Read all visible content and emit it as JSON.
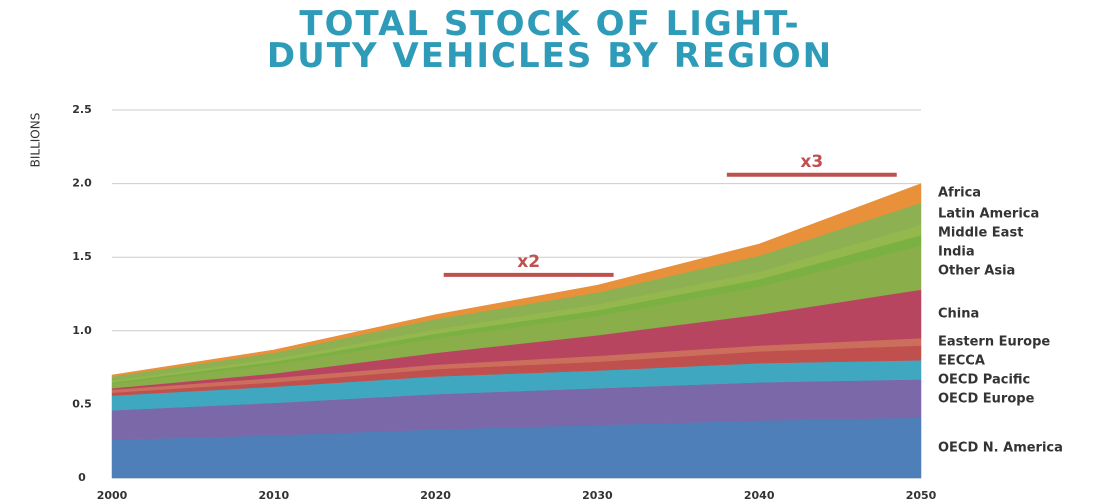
{
  "chart_data": {
    "type": "stacked_area",
    "title": "TOTAL STOCK OF LIGHT-DUTY VEHICLES BY REGION",
    "y_label": "BILLIONS",
    "x": [
      2000,
      2010,
      2020,
      2030,
      2040,
      2050
    ],
    "xlim": [
      2000,
      2050
    ],
    "xticks": [
      2000,
      2010,
      2020,
      2030,
      2040,
      2050
    ],
    "ylim": [
      0,
      2.5
    ],
    "yticks": [
      0,
      0.5,
      {
        "value": 1,
        "label": "1.0"
      },
      1.5,
      {
        "value": 2,
        "label": "2.0"
      },
      2.5
    ],
    "grid": true,
    "series": [
      {
        "name": "OECD N. America",
        "color": "#4f7fb8",
        "values": [
          0.26,
          0.29,
          0.33,
          0.36,
          0.39,
          0.41
        ]
      },
      {
        "name": "OECD Europe",
        "color": "#7a68a8",
        "values": [
          0.2,
          0.22,
          0.24,
          0.25,
          0.26,
          0.26
        ]
      },
      {
        "name": "OECD Pacific",
        "color": "#3fa8c0",
        "values": [
          0.1,
          0.11,
          0.12,
          0.12,
          0.13,
          0.13
        ]
      },
      {
        "name": "EECCA",
        "color": "#c0504d",
        "values": [
          0.02,
          0.03,
          0.05,
          0.06,
          0.08,
          0.1
        ]
      },
      {
        "name": "Eastern Europe",
        "color": "#cc6e5c",
        "values": [
          0.02,
          0.03,
          0.03,
          0.04,
          0.04,
          0.05
        ]
      },
      {
        "name": "China",
        "color": "#b84560",
        "values": [
          0.01,
          0.03,
          0.08,
          0.14,
          0.21,
          0.33
        ]
      },
      {
        "name": "Other Asia",
        "color": "#8aae4a",
        "values": [
          0.03,
          0.06,
          0.1,
          0.13,
          0.19,
          0.3
        ]
      },
      {
        "name": "India",
        "color": "#7bb043",
        "values": [
          0.01,
          0.02,
          0.03,
          0.04,
          0.05,
          0.07
        ]
      },
      {
        "name": "Middle East",
        "color": "#94b84e",
        "values": [
          0.01,
          0.02,
          0.03,
          0.04,
          0.05,
          0.07
        ]
      },
      {
        "name": "Latin America",
        "color": "#8db052",
        "values": [
          0.03,
          0.04,
          0.07,
          0.08,
          0.11,
          0.15
        ]
      },
      {
        "name": "Africa",
        "color": "#e8903a",
        "values": [
          0.01,
          0.02,
          0.03,
          0.05,
          0.08,
          0.13
        ]
      }
    ],
    "annotations": [
      {
        "text": "x2",
        "x": [
          2020.5,
          2031
        ],
        "y": 1.38,
        "color": "#c0504d"
      },
      {
        "text": "x3",
        "x": [
          2038,
          2048.5
        ],
        "y": 2.06,
        "color": "#c0504d"
      }
    ]
  }
}
